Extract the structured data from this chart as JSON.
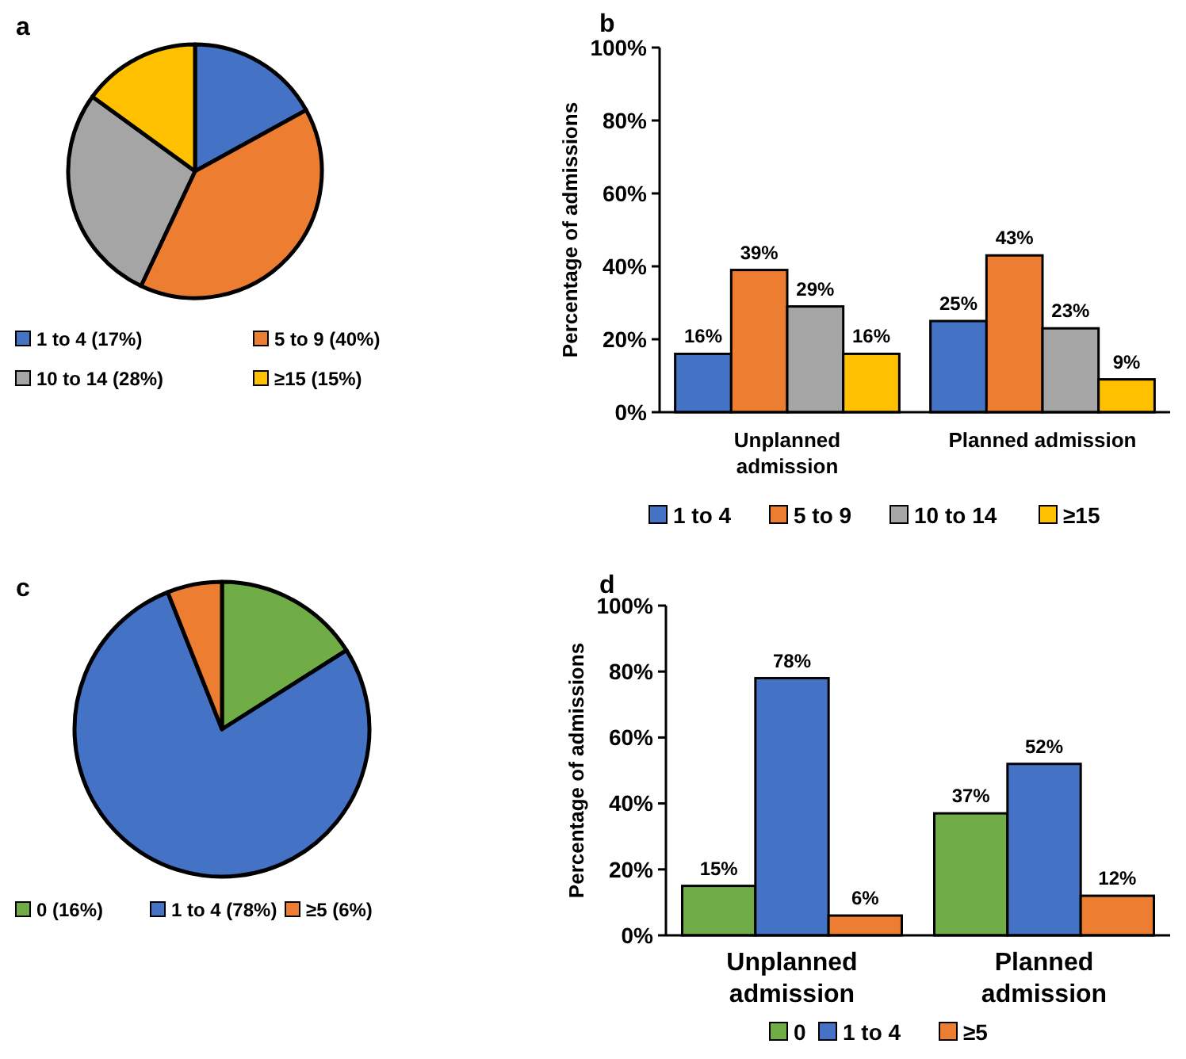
{
  "chart_data": [
    {
      "type": "pie",
      "title": "a",
      "categories": [
        "1 to 4 (17%)",
        "5 to 9 (40%)",
        "10 to 14 (28%)",
        "≥15 (15%)"
      ],
      "values": [
        17,
        40,
        28,
        15
      ],
      "colors": [
        "#4472c4",
        "#ed7d31",
        "#a5a5a5",
        "#ffc000"
      ],
      "legend": "bottom"
    },
    {
      "type": "bar",
      "title": "b",
      "ylabel": "Percentage of admissions",
      "categories": [
        "Unplanned admission",
        "Planned admission"
      ],
      "series": [
        {
          "name": "1 to 4",
          "color": "#4472c4",
          "values": [
            16,
            25
          ],
          "value_labels": [
            "16%",
            "25%"
          ]
        },
        {
          "name": "5 to 9",
          "color": "#ed7d31",
          "values": [
            39,
            43
          ],
          "value_labels": [
            "39%",
            "43%"
          ]
        },
        {
          "name": "10 to 14",
          "color": "#a5a5a5",
          "values": [
            29,
            23
          ],
          "value_labels": [
            "29%",
            "23%"
          ]
        },
        {
          "name": "≥15",
          "color": "#ffc000",
          "values": [
            16,
            9
          ],
          "value_labels": [
            "16%",
            "9%"
          ]
        }
      ],
      "ylim": [
        0,
        100
      ],
      "yticks": [
        {
          "value": 0,
          "label": "0%"
        },
        {
          "value": 20,
          "label": "20%"
        },
        {
          "value": 40,
          "label": "40%"
        },
        {
          "value": 60,
          "label": "60%"
        },
        {
          "value": 80,
          "label": "80%"
        },
        {
          "value": 100,
          "label": "100%"
        }
      ],
      "legend": "bottom"
    },
    {
      "type": "pie",
      "title": "c",
      "categories": [
        "0 (16%)",
        "1 to 4 (78%)",
        "≥5 (6%)"
      ],
      "values": [
        16,
        78,
        6
      ],
      "colors": [
        "#70ad47",
        "#4472c4",
        "#ed7d31"
      ],
      "legend": "bottom"
    },
    {
      "type": "bar",
      "title": "d",
      "ylabel": "Percentage of admissions",
      "categories": [
        "Unplanned admission",
        "Planned admission"
      ],
      "series": [
        {
          "name": "0",
          "color": "#70ad47",
          "values": [
            15,
            37
          ],
          "value_labels": [
            "15%",
            "37%"
          ]
        },
        {
          "name": "1 to 4",
          "color": "#4472c4",
          "values": [
            78,
            52
          ],
          "value_labels": [
            "78%",
            "52%"
          ]
        },
        {
          "name": "≥5",
          "color": "#ed7d31",
          "values": [
            6,
            12
          ],
          "value_labels": [
            "6%",
            "12%"
          ]
        }
      ],
      "ylim": [
        0,
        100
      ],
      "yticks": [
        {
          "value": 0,
          "label": "0%"
        },
        {
          "value": 20,
          "label": "20%"
        },
        {
          "value": 40,
          "label": "40%"
        },
        {
          "value": 60,
          "label": "60%"
        },
        {
          "value": 80,
          "label": "80%"
        },
        {
          "value": 100,
          "label": "100%"
        }
      ],
      "legend": "bottom"
    }
  ]
}
